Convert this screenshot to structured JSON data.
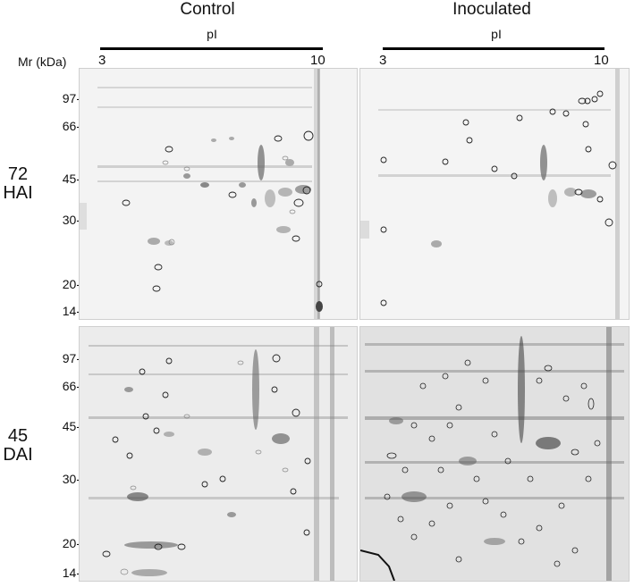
{
  "columns": [
    {
      "title": "Control"
    },
    {
      "title": "Inoculated"
    }
  ],
  "ph_axis": {
    "label": "pI",
    "start": "3",
    "end": "10"
  },
  "mr_label": "Mr (kDa)",
  "mw_markers": [
    "97-",
    "66-",
    "45-",
    "30-",
    "20-",
    "14-"
  ],
  "rows": [
    {
      "label_line1": "72",
      "label_line2": "HAI"
    },
    {
      "label_line1": "45",
      "label_line2": "DAI"
    }
  ]
}
